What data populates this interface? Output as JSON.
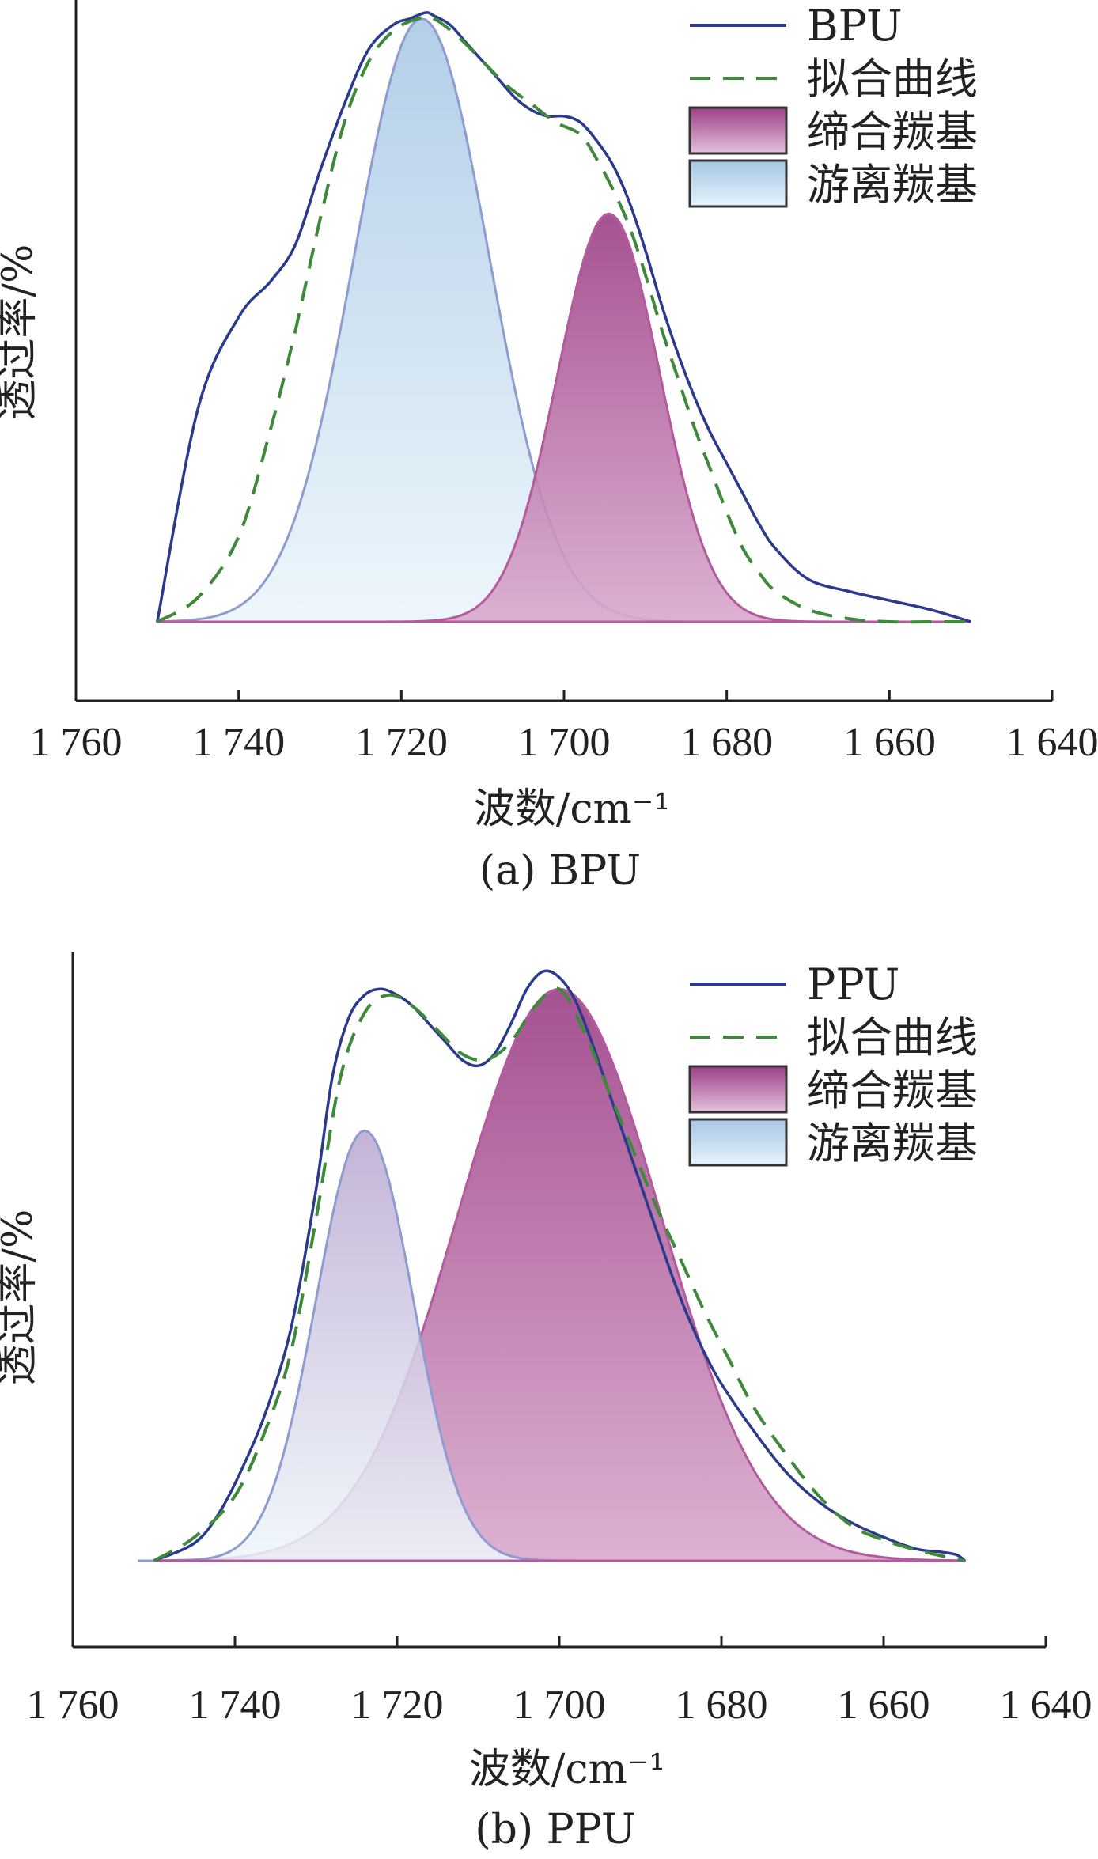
{
  "chart_data": [
    {
      "type": "area",
      "caption": "(a) BPU",
      "xlabel": "波数/cm⁻¹",
      "ylabel": "透过率/%",
      "xlim": [
        1760,
        1640
      ],
      "x_ticks": [
        1760,
        1740,
        1720,
        1700,
        1680,
        1660,
        1640
      ],
      "x_tick_labels": [
        "1 760",
        "1 740",
        "1 720",
        "1 700",
        "1 680",
        "1 660",
        "1 640"
      ],
      "ylim": [
        -0.08,
        1.0
      ],
      "legend": {
        "position": "top-right"
      },
      "series": [
        {
          "name": "BPU",
          "role": "measured",
          "color": "#2b3a8c",
          "x": [
            1750,
            1745,
            1740,
            1736,
            1733,
            1730,
            1727,
            1724,
            1721,
            1719,
            1717,
            1716,
            1714,
            1712,
            1710,
            1708,
            1706,
            1704,
            1702,
            1700,
            1698,
            1696,
            1694,
            1692,
            1690,
            1688,
            1686,
            1684,
            1682,
            1680,
            1678,
            1676,
            1674,
            1670,
            1665,
            1660,
            1655,
            1650
          ],
          "y": [
            0.0,
            0.35,
            0.5,
            0.56,
            0.62,
            0.74,
            0.85,
            0.94,
            0.98,
            0.99,
            1.0,
            0.995,
            0.98,
            0.95,
            0.92,
            0.89,
            0.86,
            0.84,
            0.83,
            0.83,
            0.82,
            0.79,
            0.75,
            0.69,
            0.61,
            0.52,
            0.44,
            0.37,
            0.31,
            0.26,
            0.21,
            0.16,
            0.12,
            0.07,
            0.05,
            0.035,
            0.02,
            0.0
          ]
        },
        {
          "name": "拟合曲线",
          "role": "fit",
          "color": "#3f8a3a",
          "dashed": true,
          "x": [
            1750,
            1745,
            1740,
            1736,
            1733,
            1730,
            1727,
            1724,
            1721,
            1718,
            1716,
            1713,
            1710,
            1707,
            1704,
            1701,
            1698,
            1696,
            1694,
            1692,
            1690,
            1688,
            1686,
            1684,
            1682,
            1680,
            1678,
            1676,
            1674,
            1670,
            1665,
            1660,
            1655,
            1650
          ],
          "y": [
            0.0,
            0.04,
            0.14,
            0.32,
            0.48,
            0.66,
            0.82,
            0.92,
            0.97,
            0.99,
            0.99,
            0.96,
            0.92,
            0.88,
            0.85,
            0.82,
            0.8,
            0.76,
            0.71,
            0.65,
            0.57,
            0.48,
            0.4,
            0.32,
            0.25,
            0.18,
            0.12,
            0.08,
            0.05,
            0.02,
            0.005,
            0.0,
            0.0,
            0.0
          ]
        },
        {
          "name": "缔合羰基",
          "role": "bonded",
          "color": "#a44f90",
          "center": 1694.5,
          "height": 0.67,
          "sigma": 6.3,
          "x_range": [
            1750,
            1650
          ]
        },
        {
          "name": "游离羰基",
          "role": "free",
          "color": "#a6cbe6",
          "center": 1717.5,
          "height": 0.99,
          "sigma": 8.3,
          "x_range": [
            1750,
            1650
          ]
        }
      ]
    },
    {
      "type": "area",
      "caption": "(b) PPU",
      "xlabel": "波数/cm⁻¹",
      "ylabel": "透过率/%",
      "xlim": [
        1760,
        1640
      ],
      "x_ticks": [
        1760,
        1740,
        1720,
        1700,
        1680,
        1660,
        1640
      ],
      "x_tick_labels": [
        "1 760",
        "1 740",
        "1 720",
        "1 700",
        "1 680",
        "1 660",
        "1 640"
      ],
      "ylim": [
        -0.15,
        1.0
      ],
      "legend": {
        "position": "top-right"
      },
      "series": [
        {
          "name": "PPU",
          "role": "measured",
          "color": "#2b3a8c",
          "x": [
            1750,
            1745,
            1742,
            1739,
            1736,
            1733,
            1730,
            1728,
            1726,
            1724,
            1722,
            1720,
            1718,
            1716,
            1714,
            1712,
            1710,
            1708,
            1706,
            1704,
            1702,
            1700,
            1698,
            1696,
            1694,
            1692,
            1690,
            1688,
            1686,
            1684,
            1682,
            1680,
            1676,
            1672,
            1668,
            1664,
            1660,
            1656,
            1653,
            1651,
            1650
          ],
          "y": [
            0.0,
            0.03,
            0.08,
            0.16,
            0.26,
            0.4,
            0.63,
            0.82,
            0.92,
            0.96,
            0.97,
            0.96,
            0.94,
            0.91,
            0.88,
            0.85,
            0.84,
            0.86,
            0.91,
            0.97,
            1.0,
            0.99,
            0.95,
            0.88,
            0.8,
            0.72,
            0.64,
            0.56,
            0.48,
            0.41,
            0.35,
            0.3,
            0.22,
            0.15,
            0.1,
            0.065,
            0.04,
            0.02,
            0.015,
            0.01,
            0.0
          ]
        },
        {
          "name": "拟合曲线",
          "role": "fit",
          "color": "#3f8a3a",
          "dashed": true,
          "x": [
            1750,
            1745,
            1740,
            1736,
            1733,
            1730,
            1727,
            1724,
            1721,
            1718,
            1715,
            1712,
            1709,
            1706,
            1703,
            1700,
            1697,
            1694,
            1691,
            1688,
            1685,
            1682,
            1679,
            1676,
            1672,
            1668,
            1664,
            1660,
            1655,
            1650
          ],
          "y": [
            0.0,
            0.04,
            0.11,
            0.23,
            0.36,
            0.58,
            0.82,
            0.93,
            0.96,
            0.94,
            0.9,
            0.86,
            0.85,
            0.88,
            0.94,
            0.97,
            0.9,
            0.8,
            0.7,
            0.6,
            0.51,
            0.42,
            0.34,
            0.26,
            0.18,
            0.11,
            0.06,
            0.035,
            0.015,
            0.0
          ]
        },
        {
          "name": "缔合羰基",
          "role": "bonded",
          "color": "#a44f90",
          "center": 1700,
          "height": 0.97,
          "sigma": 12.5,
          "x_range": [
            1750,
            1650
          ]
        },
        {
          "name": "游离羰基",
          "role": "free",
          "color": "#a6cbe6",
          "center": 1724,
          "height": 0.73,
          "sigma": 6.0,
          "x_range": [
            1752,
            1650
          ]
        }
      ]
    }
  ]
}
